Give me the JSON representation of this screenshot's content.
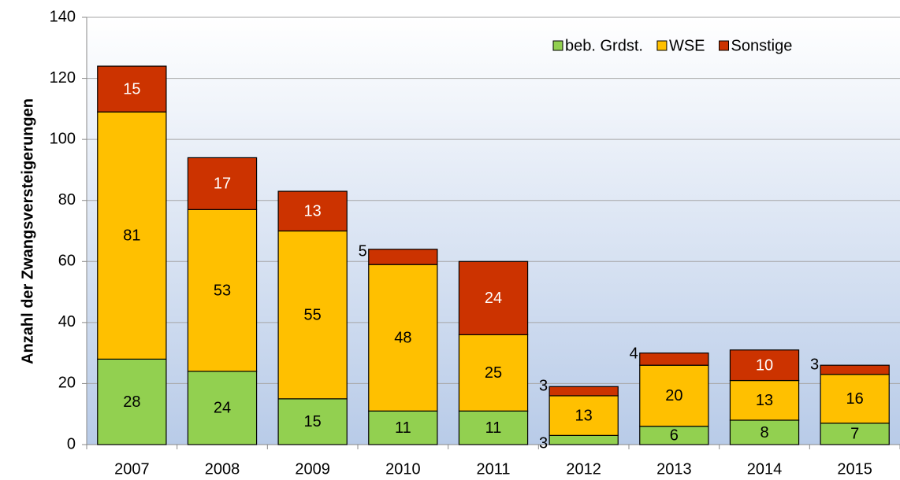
{
  "chart_data": {
    "type": "stacked_bar",
    "y_label": "Anzahl der Zwangsversteigerungen",
    "categories": [
      "2007",
      "2008",
      "2009",
      "2010",
      "2011",
      "2012",
      "2013",
      "2014",
      "2015"
    ],
    "series": [
      {
        "name": "beb. Grdst.",
        "color": "#92d050",
        "values": [
          28,
          24,
          15,
          11,
          11,
          3,
          6,
          8,
          7
        ]
      },
      {
        "name": "WSE",
        "color": "#ffc000",
        "values": [
          81,
          53,
          55,
          48,
          25,
          13,
          20,
          13,
          16
        ]
      },
      {
        "name": "Sonstige",
        "color": "#cc3300",
        "values": [
          15,
          17,
          13,
          5,
          24,
          3,
          4,
          10,
          3
        ]
      }
    ],
    "ylim": [
      0,
      140
    ],
    "yticks": [
      0,
      20,
      40,
      60,
      80,
      100,
      120,
      140
    ],
    "grid": true,
    "legend": "top-right"
  }
}
